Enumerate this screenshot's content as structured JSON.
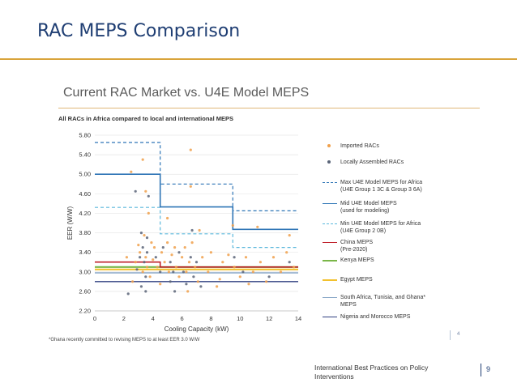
{
  "slide": {
    "title": "RAC MEPS Comparison",
    "chart_heading": "Current RAC Market vs. U4E Model MEPS",
    "chart_subtitle": "All RACs in Africa compared to local and international MEPS",
    "footnote": "*Ghana recently committed to revising MEPS to at least EER 3.0 W/W",
    "inner_page_number": "4",
    "footer_text": "International Best Practices on Policy Interventions",
    "page_number": "9",
    "accent_color": "#d9a43b",
    "title_color": "#1f3e73"
  },
  "chart_data": {
    "type": "scatter",
    "title": "All RACs in Africa compared to local and international MEPS",
    "xlabel": "Cooling Capacity (kW)",
    "ylabel": "EER (W/W)",
    "xlim": [
      0,
      14
    ],
    "ylim": [
      2.2,
      5.8
    ],
    "xticks": [
      "0",
      "2",
      "4",
      "6",
      "8",
      "10",
      "12",
      "14"
    ],
    "yticks": [
      "2.20",
      "2.60",
      "3.00",
      "3.40",
      "3.80",
      "4.20",
      "4.60",
      "5.00",
      "5.40",
      "5.80"
    ],
    "series": [
      {
        "name": "Imported RACs",
        "kind": "points",
        "color": "#f0a04b",
        "points": [
          [
            2.5,
            5.05
          ],
          [
            3.3,
            5.3
          ],
          [
            3.5,
            4.65
          ],
          [
            6.6,
            5.5
          ],
          [
            6.6,
            4.75
          ],
          [
            3.7,
            4.2
          ],
          [
            5.0,
            4.1
          ],
          [
            7.2,
            3.85
          ],
          [
            9.5,
            3.95
          ],
          [
            11.2,
            3.92
          ],
          [
            13.4,
            3.75
          ],
          [
            3.0,
            3.55
          ],
          [
            3.4,
            3.75
          ],
          [
            3.9,
            3.6
          ],
          [
            2.2,
            3.3
          ],
          [
            2.8,
            3.2
          ],
          [
            3.1,
            3.4
          ],
          [
            3.3,
            3.0
          ],
          [
            3.5,
            3.3
          ],
          [
            3.6,
            3.1
          ],
          [
            3.8,
            2.9
          ],
          [
            4.0,
            3.25
          ],
          [
            4.1,
            3.5
          ],
          [
            4.3,
            3.1
          ],
          [
            4.6,
            3.4
          ],
          [
            4.8,
            3.2
          ],
          [
            5.0,
            3.6
          ],
          [
            5.1,
            3.0
          ],
          [
            5.3,
            3.35
          ],
          [
            5.5,
            3.5
          ],
          [
            5.6,
            3.1
          ],
          [
            5.8,
            2.9
          ],
          [
            6.0,
            3.3
          ],
          [
            6.2,
            3.5
          ],
          [
            6.3,
            3.0
          ],
          [
            6.5,
            3.2
          ],
          [
            6.7,
            3.6
          ],
          [
            6.9,
            3.1
          ],
          [
            7.1,
            2.8
          ],
          [
            7.4,
            3.3
          ],
          [
            7.8,
            3.0
          ],
          [
            8.0,
            3.4
          ],
          [
            8.4,
            2.7
          ],
          [
            8.8,
            3.2
          ],
          [
            9.2,
            3.35
          ],
          [
            9.6,
            3.1
          ],
          [
            10.0,
            2.9
          ],
          [
            10.4,
            3.3
          ],
          [
            10.9,
            3.0
          ],
          [
            11.4,
            3.2
          ],
          [
            11.8,
            2.8
          ],
          [
            12.3,
            3.3
          ],
          [
            12.8,
            3.0
          ],
          [
            13.2,
            3.4
          ],
          [
            13.7,
            3.1
          ],
          [
            2.6,
            2.8
          ],
          [
            4.5,
            2.75
          ],
          [
            6.4,
            2.6
          ],
          [
            8.6,
            2.85
          ],
          [
            10.6,
            2.75
          ]
        ]
      },
      {
        "name": "Locally Assembled RACs",
        "kind": "points",
        "color": "#5a6478",
        "points": [
          [
            2.8,
            4.65
          ],
          [
            3.7,
            4.55
          ],
          [
            6.7,
            3.85
          ],
          [
            3.2,
            3.8
          ],
          [
            3.3,
            3.5
          ],
          [
            3.4,
            3.2
          ],
          [
            3.5,
            2.9
          ],
          [
            3.6,
            3.4
          ],
          [
            3.2,
            2.7
          ],
          [
            3.5,
            2.6
          ],
          [
            2.9,
            3.05
          ],
          [
            4.2,
            3.3
          ],
          [
            4.5,
            3.0
          ],
          [
            4.7,
            3.5
          ],
          [
            5.2,
            3.2
          ],
          [
            5.2,
            2.8
          ],
          [
            5.4,
            3.0
          ],
          [
            5.5,
            2.6
          ],
          [
            5.8,
            3.4
          ],
          [
            6.1,
            3.0
          ],
          [
            6.3,
            2.75
          ],
          [
            6.6,
            3.3
          ],
          [
            6.8,
            2.9
          ],
          [
            7.0,
            3.2
          ],
          [
            7.3,
            2.7
          ],
          [
            9.6,
            3.3
          ],
          [
            10.2,
            3.0
          ],
          [
            12.0,
            2.9
          ],
          [
            13.4,
            3.2
          ],
          [
            2.3,
            2.55
          ],
          [
            3.1,
            3.3
          ],
          [
            3.6,
            3.7
          ]
        ]
      },
      {
        "name": "Max U4E Model MEPS for Africa\n(U4E Group 1 3C & Group 3 6A)",
        "kind": "step",
        "color": "#2e75b6",
        "dash": "4,3",
        "width": 1.2,
        "steps": [
          [
            0,
            5.65
          ],
          [
            4.5,
            5.65
          ],
          [
            4.5,
            4.8
          ],
          [
            9.5,
            4.8
          ],
          [
            9.5,
            4.25
          ],
          [
            14,
            4.25
          ]
        ]
      },
      {
        "name": "Mid U4E Model MEPS\n(used for modeling)",
        "kind": "step",
        "color": "#2e75b6",
        "dash": "",
        "width": 1.6,
        "steps": [
          [
            0,
            5.0
          ],
          [
            4.5,
            5.0
          ],
          [
            4.5,
            4.33
          ],
          [
            9.5,
            4.33
          ],
          [
            9.5,
            3.87
          ],
          [
            14,
            3.87
          ]
        ]
      },
      {
        "name": "Min U4E Model MEPS for Africa\n(U4E Group 2 0B)",
        "kind": "step",
        "color": "#5bb8dc",
        "dash": "4,3",
        "width": 1.2,
        "steps": [
          [
            0,
            4.32
          ],
          [
            4.5,
            4.32
          ],
          [
            4.5,
            3.78
          ],
          [
            9.5,
            3.78
          ],
          [
            9.5,
            3.5
          ],
          [
            14,
            3.5
          ]
        ]
      },
      {
        "name": "China MEPS\n(Pre-2020)",
        "kind": "step",
        "color": "#c0202a",
        "dash": "",
        "width": 1.6,
        "steps": [
          [
            0,
            3.2
          ],
          [
            4.5,
            3.2
          ],
          [
            4.5,
            3.1
          ],
          [
            14,
            3.1
          ]
        ]
      },
      {
        "name": "Kenya MEPS",
        "kind": "step",
        "color": "#7ab648",
        "dash": "",
        "width": 2.2,
        "steps": [
          [
            0,
            3.1
          ],
          [
            14,
            3.1
          ]
        ]
      },
      {
        "name": "Egypt MEPS",
        "kind": "step",
        "color": "#f2c12e",
        "dash": "",
        "width": 2.2,
        "steps": [
          [
            0,
            3.05
          ],
          [
            14,
            3.05
          ]
        ]
      },
      {
        "name": "South Africa, Tunisia, and Ghana*\nMEPS",
        "kind": "step",
        "color": "#8aa8c8",
        "dash": "",
        "width": 1.4,
        "steps": [
          [
            0,
            2.98
          ],
          [
            14,
            2.98
          ]
        ]
      },
      {
        "name": "Nigeria and Morocco MEPS",
        "kind": "step",
        "color": "#2f3f80",
        "dash": "",
        "width": 1.4,
        "steps": [
          [
            0,
            2.8
          ],
          [
            14,
            2.8
          ]
        ]
      }
    ]
  }
}
